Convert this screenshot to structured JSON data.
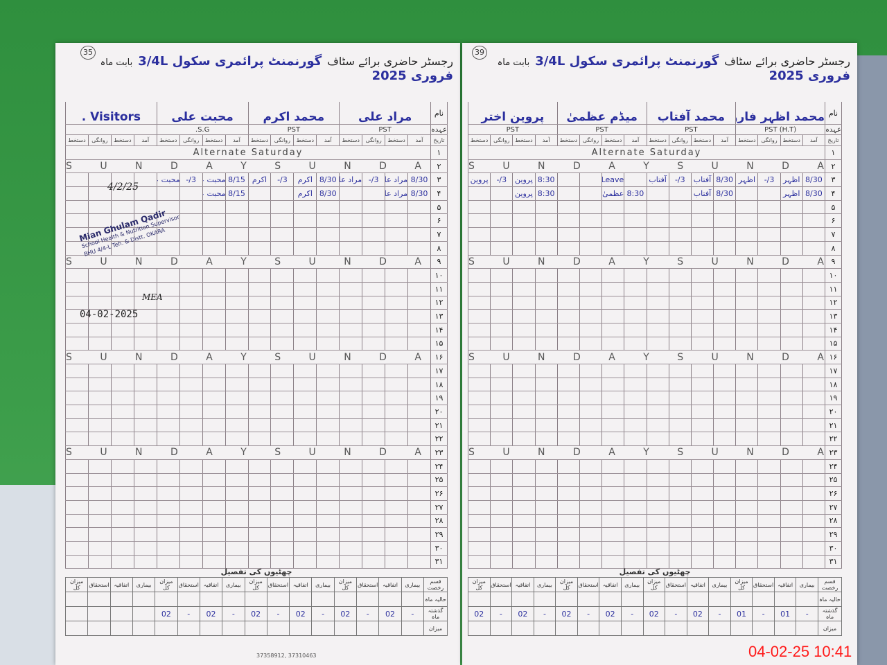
{
  "colors": {
    "ink_blue": "#2b2f9e",
    "paper": "#f4f2f3",
    "background": "#3c9d4a",
    "timestamp": "#ff1a1a"
  },
  "row_labels": {
    "name": "نام",
    "designation": "عہدہ",
    "date": "تاریخ"
  },
  "col_headers": [
    "آمد",
    "دستخط",
    "روانگی",
    "دستخط"
  ],
  "dates": [
    "۱",
    "۲",
    "۳",
    "۴",
    "۵",
    "۶",
    "۷",
    "۸",
    "۹",
    "۱۰",
    "۱۱",
    "۱۲",
    "۱۳",
    "۱۴",
    "۱۵",
    "۱۶",
    "۱۷",
    "۱۸",
    "۱۹",
    "۲۰",
    "۲۱",
    "۲۲",
    "۲۳",
    "۲۴",
    "۲۵",
    "۲۶",
    "۲۷",
    "۲۸",
    "۲۹",
    "۳۰",
    "۳۱"
  ],
  "special_rows": {
    "1": "Alternate Saturday",
    "2": "S U N D A Y   S U N D A Y",
    "9": "S U N D A Y   S U N D A Y",
    "16": "S U N D A Y   S U N D A Y",
    "23": "S U N D A Y   S U N D A Y"
  },
  "leave_summary": {
    "title": "چھٹیوں کی تفصیل",
    "row_headers": [
      "قسم رخصت",
      "حالیہ ماہ",
      "گذشتہ ماہ",
      "میزان"
    ],
    "col_headers": [
      "بیماری",
      "اتفاقیہ",
      "استحقاق",
      "میزان کل"
    ]
  },
  "pages": [
    {
      "page_no": "35",
      "title_prefix": "رجسٹر حاضری برائے سٹاف",
      "school": "گورنمنٹ پرائمری سکول 3/4L",
      "month_label": "بابت ماہ",
      "month": "فروری 2025",
      "staff": [
        {
          "name": "مراد علی",
          "designation": "PST",
          "entries": {
            "3": [
              "8/30",
              "مراد علی",
              "3/-",
              "مراد علی"
            ],
            "4": [
              "8/30",
              "مراد علی",
              "",
              ""
            ]
          },
          "leave_prev": [
            "-",
            "02",
            "-",
            "02"
          ]
        },
        {
          "name": "محمد اکرم",
          "designation": "PST",
          "entries": {
            "3": [
              "8/30",
              "اکرم",
              "3/-",
              "اکرم"
            ],
            "4": [
              "8/30",
              "اکرم",
              "",
              ""
            ]
          },
          "leave_prev": [
            "-",
            "02",
            "-",
            "02"
          ]
        },
        {
          "name": "محبت علی",
          "designation": "S.G.",
          "entries": {
            "3": [
              "8/15",
              "محبت علی",
              "3/-",
              "محبت علی"
            ],
            "4": [
              "8/15",
              "محبت علی",
              "",
              ""
            ]
          },
          "leave_prev": [
            "-",
            "02",
            "-",
            "02"
          ]
        },
        {
          "name": "Visitors .",
          "designation": "",
          "entries": {},
          "leave_prev": [
            "",
            "",
            "",
            ""
          ]
        }
      ],
      "stamp": {
        "name": "Mian Ghulam Qadir",
        "line1": "School Health & Nutrition Supervisor",
        "line2": "BHU 4/4-L Teh. & Distt. OKARA",
        "signed_date": "4/2/25"
      },
      "signature2": {
        "initials": "MEA",
        "date": "04-02-2025"
      },
      "footer": "37358912, 37310463"
    },
    {
      "page_no": "39",
      "title_prefix": "رجسٹر حاضری برائے سٹاف",
      "school": "گورنمنٹ پرائمری سکول 3/4L",
      "month_label": "بابت ماہ",
      "month": "فروری 2025",
      "staff": [
        {
          "name": "محمد اظہر فاروق",
          "designation": "PST (H.T)",
          "entries": {
            "3": [
              "8/30",
              "اظہر",
              "3/-",
              "اظہر"
            ],
            "4": [
              "8/30",
              "اظہر",
              "",
              ""
            ]
          },
          "leave_prev": [
            "-",
            "01",
            "-",
            "01"
          ]
        },
        {
          "name": "محمد آفتاب",
          "designation": "PST",
          "entries": {
            "3": [
              "8/30",
              "آفتاب",
              "3/-",
              "آفتاب"
            ],
            "4": [
              "8/30",
              "آفتاب",
              "",
              ""
            ]
          },
          "leave_prev": [
            "-",
            "02",
            "-",
            "02"
          ]
        },
        {
          "name": "میڈم عظمیٰ",
          "designation": "PST",
          "entries": {
            "3": [
              "",
              "C- Leave -",
              "",
              ""
            ],
            "4": [
              "8:30",
              "عظمیٰ",
              "",
              ""
            ]
          },
          "leave_prev": [
            "-",
            "02",
            "-",
            "02"
          ]
        },
        {
          "name": "پروین اختر",
          "designation": "PST",
          "entries": {
            "3": [
              "8:30",
              "پروین",
              "3/-",
              "پروین"
            ],
            "4": [
              "8:30",
              "پروین",
              "",
              ""
            ]
          },
          "leave_prev": [
            "-",
            "02",
            "-",
            "02"
          ]
        }
      ]
    }
  ],
  "camera_timestamp": "04-02-25  10:41"
}
